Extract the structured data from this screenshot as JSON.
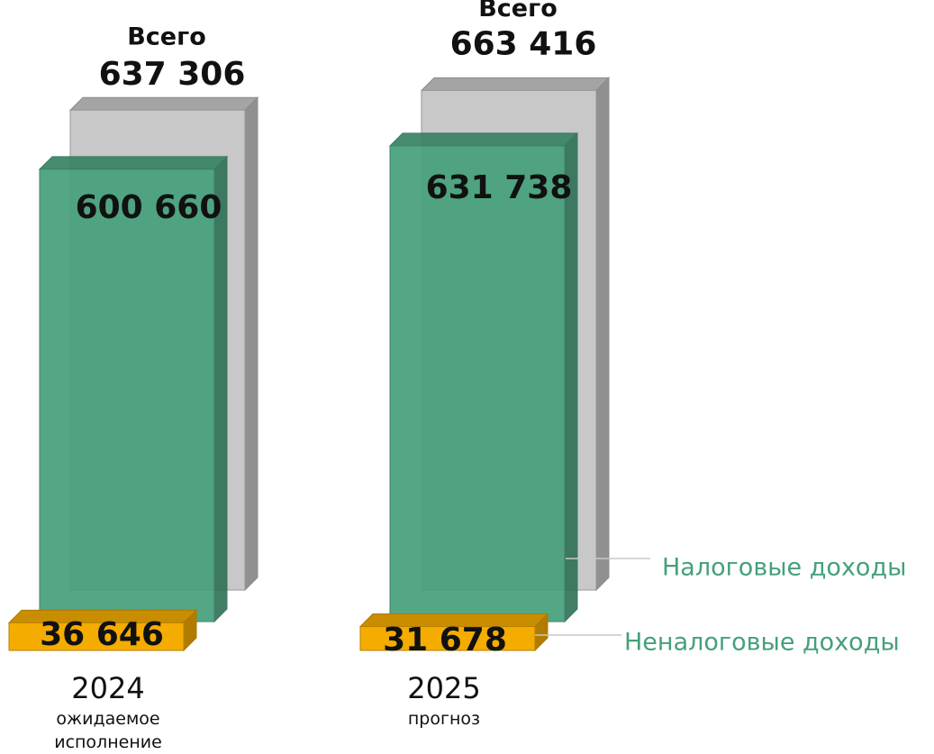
{
  "chart_data": {
    "type": "bar3d",
    "categories": [
      "2024",
      "2025"
    ],
    "category_sublabels": [
      "ожидаемое исполнение",
      "прогноз"
    ],
    "series": [
      {
        "name": "Всего",
        "color": "#c8c8c8",
        "values": [
          637306,
          663416
        ],
        "value_labels": [
          "637 306",
          "663 416"
        ]
      },
      {
        "name": "Налоговые доходы",
        "color": "#45a07a",
        "values": [
          600660,
          631738
        ],
        "value_labels": [
          "600 660",
          "631 738"
        ]
      },
      {
        "name": "Неналоговые доходы",
        "color": "#f5ac00",
        "values": [
          36646,
          31678
        ],
        "value_labels": [
          "36 646",
          "31 678"
        ]
      }
    ]
  }
}
